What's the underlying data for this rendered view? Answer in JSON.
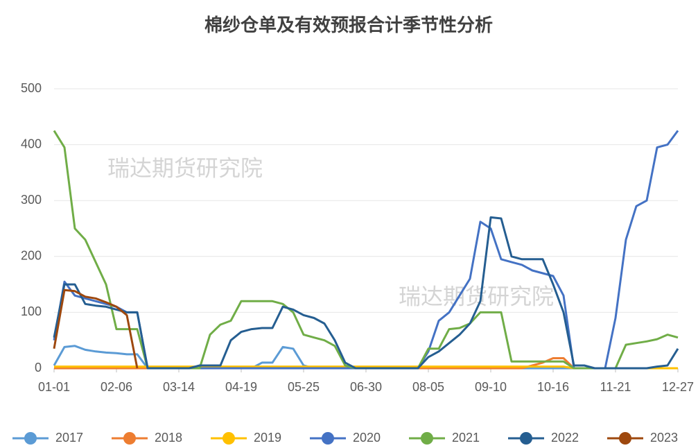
{
  "chart_data": {
    "type": "line",
    "title": "棉纱仓单及有效预报合计季节性分析",
    "watermarks": [
      "瑞达期货研究院",
      "瑞达期货研究院"
    ],
    "categories": [
      "01-01",
      null,
      null,
      null,
      null,
      null,
      "02-06",
      null,
      null,
      null,
      null,
      null,
      "03-14",
      null,
      null,
      null,
      null,
      null,
      "04-19",
      null,
      null,
      null,
      null,
      null,
      "05-25",
      null,
      null,
      null,
      null,
      null,
      "06-30",
      null,
      null,
      null,
      null,
      null,
      "08-05",
      null,
      null,
      null,
      null,
      null,
      "09-10",
      null,
      null,
      null,
      null,
      null,
      "10-16",
      null,
      null,
      null,
      null,
      null,
      "11-21",
      null,
      null,
      null,
      null,
      null,
      "12-27"
    ],
    "ylim": [
      0,
      500
    ],
    "yticks": [
      0,
      100,
      200,
      300,
      400,
      500
    ],
    "grid": true,
    "series": [
      {
        "name": "2017",
        "color": "#5b9bd5",
        "values": [
          5,
          38,
          40,
          33,
          30,
          28,
          27,
          25,
          25,
          0,
          0,
          0,
          0,
          0,
          0,
          0,
          0,
          0,
          0,
          0,
          10,
          10,
          38,
          35,
          5,
          0,
          0,
          0,
          0,
          0,
          0,
          0,
          0,
          0,
          0,
          0,
          0,
          0,
          0,
          0,
          0,
          0,
          0,
          0,
          0,
          0,
          0,
          0,
          0,
          0,
          0,
          0,
          0,
          0,
          0,
          0,
          0,
          0,
          0,
          0,
          0
        ]
      },
      {
        "name": "2018",
        "color": "#ed7d31",
        "values": [
          0,
          0,
          0,
          0,
          0,
          0,
          0,
          0,
          0,
          0,
          0,
          0,
          0,
          0,
          0,
          0,
          0,
          0,
          0,
          0,
          0,
          0,
          0,
          0,
          0,
          0,
          0,
          0,
          0,
          0,
          0,
          0,
          0,
          0,
          0,
          0,
          0,
          0,
          0,
          0,
          0,
          0,
          0,
          0,
          0,
          0,
          5,
          10,
          18,
          18,
          0,
          0,
          0,
          0,
          0,
          0,
          0,
          0,
          0,
          0,
          0
        ]
      },
      {
        "name": "2019",
        "color": "#ffc000",
        "values": [
          3,
          3,
          3,
          3,
          3,
          3,
          3,
          3,
          3,
          3,
          3,
          3,
          3,
          3,
          3,
          3,
          3,
          3,
          3,
          3,
          3,
          3,
          3,
          3,
          3,
          3,
          3,
          3,
          3,
          3,
          3,
          3,
          3,
          3,
          3,
          3,
          3,
          3,
          3,
          3,
          3,
          3,
          3,
          3,
          3,
          3,
          3,
          3,
          3,
          3,
          0,
          0,
          0,
          0,
          0,
          0,
          0,
          0,
          0,
          0,
          0
        ]
      },
      {
        "name": "2020",
        "color": "#4472c4",
        "values": [
          50,
          155,
          130,
          125,
          120,
          115,
          110,
          100,
          100,
          0,
          0,
          0,
          0,
          0,
          0,
          0,
          0,
          0,
          0,
          0,
          0,
          0,
          0,
          0,
          0,
          0,
          0,
          0,
          0,
          0,
          0,
          0,
          0,
          0,
          0,
          0,
          30,
          85,
          100,
          130,
          160,
          262,
          250,
          195,
          190,
          185,
          175,
          170,
          165,
          130,
          0,
          0,
          0,
          0,
          90,
          230,
          290,
          300,
          395,
          400,
          425
        ]
      },
      {
        "name": "2021",
        "color": "#70ad47",
        "values": [
          425,
          395,
          250,
          230,
          190,
          150,
          70,
          70,
          70,
          0,
          0,
          0,
          0,
          0,
          0,
          60,
          78,
          85,
          120,
          120,
          120,
          120,
          115,
          100,
          60,
          55,
          50,
          40,
          5,
          0,
          0,
          0,
          0,
          0,
          0,
          0,
          35,
          35,
          70,
          72,
          80,
          100,
          100,
          100,
          12,
          12,
          12,
          12,
          12,
          12,
          0,
          0,
          0,
          0,
          0,
          42,
          45,
          48,
          52,
          60,
          55
        ]
      },
      {
        "name": "2022",
        "color": "#255e91",
        "values": [
          55,
          150,
          150,
          115,
          112,
          110,
          105,
          100,
          100,
          0,
          0,
          0,
          0,
          0,
          5,
          5,
          5,
          50,
          65,
          70,
          72,
          72,
          110,
          105,
          95,
          90,
          80,
          50,
          10,
          0,
          0,
          0,
          0,
          0,
          0,
          0,
          20,
          30,
          45,
          60,
          80,
          120,
          270,
          268,
          200,
          195,
          195,
          195,
          150,
          100,
          5,
          5,
          0,
          0,
          0,
          0,
          0,
          0,
          3,
          5,
          35
        ]
      },
      {
        "name": "2023",
        "color": "#9e480e",
        "values": [
          35,
          140,
          138,
          128,
          125,
          118,
          110,
          95,
          0,
          null,
          null,
          null,
          null,
          null,
          null,
          null,
          null,
          null,
          null,
          null,
          null,
          null,
          null,
          null,
          null,
          null,
          null,
          null,
          null,
          null,
          null,
          null,
          null,
          null,
          null,
          null,
          null,
          null,
          null,
          null,
          null,
          null,
          null,
          null,
          null,
          null,
          null,
          null,
          null,
          null,
          null,
          null,
          null,
          null,
          null,
          null,
          null,
          null,
          null,
          null,
          null
        ]
      }
    ]
  }
}
